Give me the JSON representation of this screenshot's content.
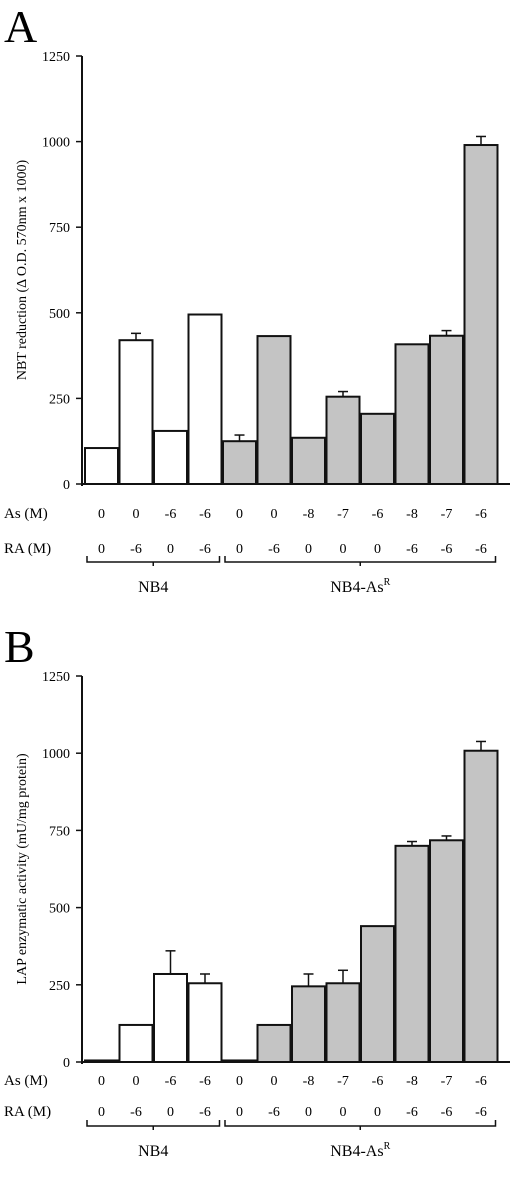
{
  "colors": {
    "open_bar": "#ffffff",
    "shaded_bar": "#c4c4c4",
    "ink": "#111111"
  },
  "chart_data": [
    {
      "type": "bar",
      "panel": "A",
      "ylabel": "NBT reduction (Δ O.D. 570nm x 1000)",
      "ylim": [
        0,
        1250
      ],
      "yticks": [
        0,
        250,
        500,
        750,
        1000,
        1250
      ],
      "row_labels": [
        "As (M)",
        "RA (M)"
      ],
      "as_values": [
        "0",
        "0",
        "-6",
        "-6",
        "0",
        "0",
        "-8",
        "-7",
        "-6",
        "-8",
        "-7",
        "-6"
      ],
      "ra_values": [
        "0",
        "-6",
        "0",
        "-6",
        "0",
        "-6",
        "0",
        "0",
        "0",
        "-6",
        "-6",
        "-6"
      ],
      "groups": [
        {
          "name": "NB4",
          "superscript": "",
          "count": 4,
          "fill": "open"
        },
        {
          "name": "NB4-As",
          "superscript": "R",
          "count": 8,
          "fill": "shaded"
        }
      ],
      "values": [
        105,
        420,
        155,
        495,
        125,
        432,
        135,
        255,
        205,
        408,
        433,
        990
      ],
      "errors": [
        0,
        20,
        0,
        0,
        18,
        0,
        0,
        15,
        0,
        0,
        15,
        25
      ]
    },
    {
      "type": "bar",
      "panel": "B",
      "ylabel": "LAP enzymatic activity (mU/mg protein)",
      "ylim": [
        0,
        1250
      ],
      "yticks": [
        0,
        250,
        500,
        750,
        1000,
        1250
      ],
      "row_labels": [
        "As (M)",
        "RA (M)"
      ],
      "as_values": [
        "0",
        "0",
        "-6",
        "-6",
        "0",
        "0",
        "-8",
        "-7",
        "-6",
        "-8",
        "-7",
        "-6"
      ],
      "ra_values": [
        "0",
        "-6",
        "0",
        "-6",
        "0",
        "-6",
        "0",
        "0",
        "0",
        "-6",
        "-6",
        "-6"
      ],
      "groups": [
        {
          "name": "NB4",
          "superscript": "",
          "count": 4,
          "fill": "open"
        },
        {
          "name": "NB4-As",
          "superscript": "R",
          "count": 8,
          "fill": "shaded"
        }
      ],
      "values": [
        5,
        120,
        285,
        255,
        5,
        120,
        245,
        255,
        440,
        700,
        718,
        1008
      ],
      "errors": [
        0,
        0,
        75,
        30,
        0,
        0,
        40,
        42,
        0,
        14,
        14,
        30
      ]
    }
  ]
}
